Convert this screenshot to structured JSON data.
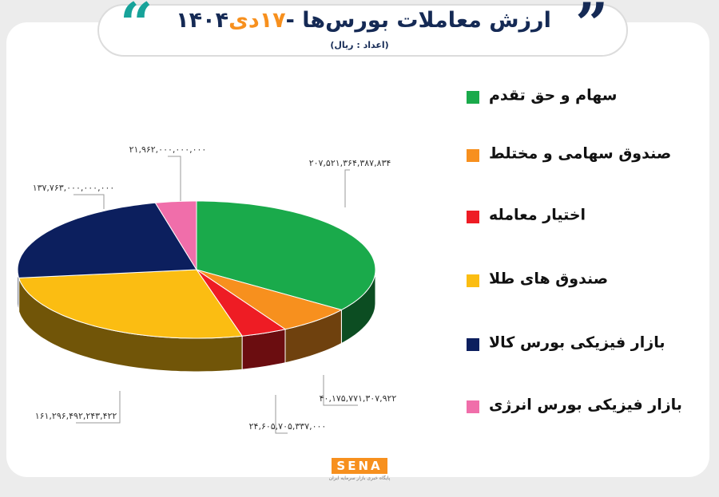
{
  "chart_data": {
    "type": "pie",
    "title": "ارزش معاملات بورس‌ها -",
    "title_day": "۱۷دی",
    "title_year": "۱۴۰۴",
    "subtitle": "(اعداد : ریال)",
    "categories": [
      "سهام و حق تقدم",
      "صندوق سهامی و مختلط",
      "اختیار معامله",
      "صندوق های طلا",
      "بازار فیزیکی بورس کالا",
      "بازار فیزیکی بورس انرژی"
    ],
    "values": [
      207521364387834,
      40175771307922,
      24605705337000,
      161296492243422,
      137763000000000,
      21962000000000
    ],
    "value_labels": [
      "۲۰۷,۵۲۱,۳۶۴,۳۸۷,۸۳۴",
      "۴۰,۱۷۵,۷۷۱,۳۰۷,۹۲۲",
      "۲۴,۶۰۵,۷۰۵,۳۳۷,۰۰۰",
      "۱۶۱,۲۹۶,۴۹۲,۲۴۳,۴۲۲",
      "۱۳۷,۷۶۳,۰۰۰,۰۰۰,۰۰۰",
      "۲۱,۹۶۲,۰۰۰,۰۰۰,۰۰۰"
    ],
    "colors": [
      "#1aaa4b",
      "#f7901e",
      "#ee1c24",
      "#fbbd12",
      "#0c1f5e",
      "#f06eaa"
    ],
    "logo": "SENA",
    "logo_caption": "پایگاه خبری بازار سرمایه ایران"
  }
}
